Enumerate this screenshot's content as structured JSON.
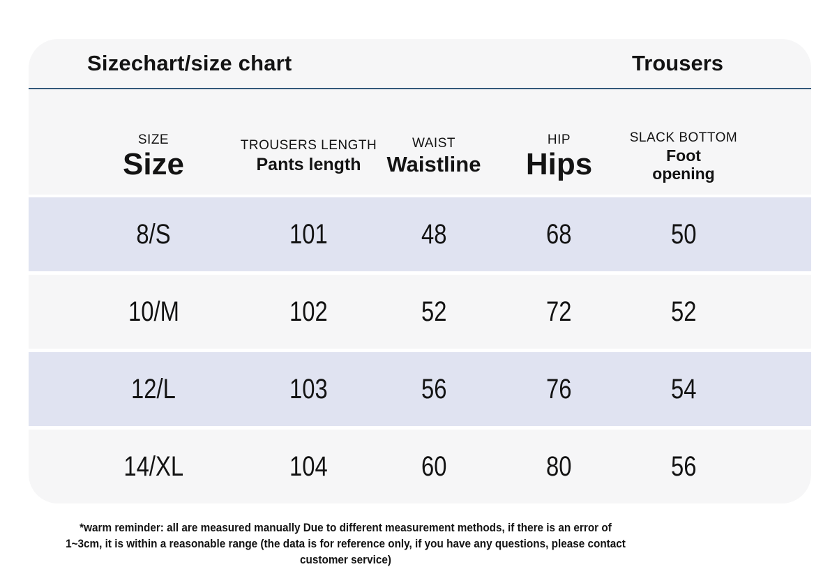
{
  "header": {
    "title": "Sizechart/size chart",
    "category": "Trousers"
  },
  "columns": [
    {
      "en": "SIZE",
      "alt": "Size"
    },
    {
      "en": "TROUSERS LENGTH",
      "alt": "Pants length"
    },
    {
      "en": "WAIST",
      "alt": "Waistline"
    },
    {
      "en": "HIP",
      "alt": "Hips"
    },
    {
      "en": "SLACK BOTTOM",
      "alt": "Foot opening"
    }
  ],
  "rows": [
    [
      "8/S",
      "101",
      "48",
      "68",
      "50"
    ],
    [
      "10/M",
      "102",
      "52",
      "72",
      "52"
    ],
    [
      "12/L",
      "103",
      "56",
      "76",
      "54"
    ],
    [
      "14/XL",
      "104",
      "60",
      "80",
      "56"
    ]
  ],
  "footnote": {
    "line1": "*warm reminder: all are measured manually Due to different measurement methods, if there is an error of",
    "line2": "1~3cm, it is within a reasonable range (the data is for reference only, if you have any questions, please contact",
    "line3": "customer service)"
  },
  "colors": {
    "divider": "#33587a",
    "row_alt": "#e0e3f1",
    "row_base": "#f6f6f7",
    "text": "#131313"
  }
}
